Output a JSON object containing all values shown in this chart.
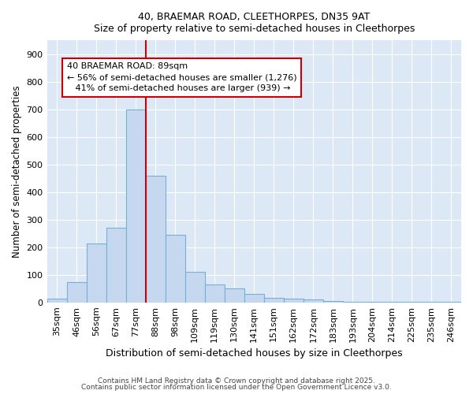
{
  "title1": "40, BRAEMAR ROAD, CLEETHORPES, DN35 9AT",
  "title2": "Size of property relative to semi-detached houses in Cleethorpes",
  "xlabel": "Distribution of semi-detached houses by size in Cleethorpes",
  "ylabel": "Number of semi-detached properties",
  "categories": [
    "35sqm",
    "46sqm",
    "56sqm",
    "67sqm",
    "77sqm",
    "88sqm",
    "98sqm",
    "109sqm",
    "119sqm",
    "130sqm",
    "141sqm",
    "151sqm",
    "162sqm",
    "172sqm",
    "183sqm",
    "193sqm",
    "204sqm",
    "214sqm",
    "225sqm",
    "235sqm",
    "246sqm"
  ],
  "values": [
    15,
    75,
    215,
    270,
    700,
    460,
    245,
    110,
    65,
    52,
    30,
    18,
    13,
    10,
    5,
    3,
    2,
    1,
    1,
    1,
    1
  ],
  "bar_color": "#c5d8f0",
  "bar_edge_color": "#7aafd4",
  "highlight_line_color": "#cc0000",
  "highlight_line_index": 5,
  "annotation_line1": "40 BRAEMAR ROAD: 89sqm",
  "annotation_line2": "← 56% of semi-detached houses are smaller (1,276)",
  "annotation_line3": "   41% of semi-detached houses are larger (939) →",
  "annotation_box_color": "#ffffff",
  "annotation_box_edge": "#cc0000",
  "ylim": [
    0,
    950
  ],
  "yticks": [
    0,
    100,
    200,
    300,
    400,
    500,
    600,
    700,
    800,
    900
  ],
  "bg_color": "#dce8f5",
  "footer1": "Contains HM Land Registry data © Crown copyright and database right 2025.",
  "footer2": "Contains public sector information licensed under the Open Government Licence v3.0."
}
